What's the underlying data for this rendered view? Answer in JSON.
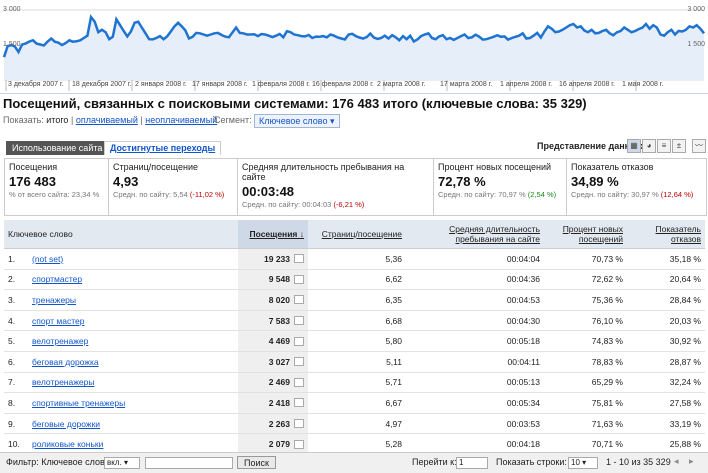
{
  "chart": {
    "y_labels": [
      "3 000",
      "1 500"
    ],
    "x_labels": [
      "3 декабря 2007 г.",
      "18 декабря 2007 г.",
      "2 января 2008 г.",
      "17 января 2008 г.",
      "1 февраля 2008 г.",
      "16 февраля 2008 г.",
      "2 марта 2008 г.",
      "17 марта 2008 г.",
      "1 апреля 2008 г.",
      "16 апреля 2008 г.",
      "1 мая 2008 г."
    ],
    "visits_daily": [
      980,
      1450,
      1500,
      1430,
      1200,
      1520,
      1570,
      1650,
      1700,
      1560,
      1520,
      1480,
      1640,
      1780,
      1640,
      1600,
      1500,
      1580,
      1700,
      1640,
      1660,
      1700,
      1800,
      1900,
      2700,
      2500,
      2050,
      2150,
      2050,
      1750,
      1850,
      2600,
      2350,
      2100,
      1870,
      2080,
      2450,
      2500,
      2250,
      2000,
      1750,
      1740,
      1800,
      1880,
      1750,
      1870,
      2080,
      2300,
      2450,
      2300,
      2130,
      1780,
      1850,
      2020,
      2000,
      1950,
      1900,
      1950,
      2000,
      2020,
      1930,
      1860,
      1830,
      2040,
      2250,
      2020,
      2000,
      1950,
      1950,
      1960,
      1880,
      1970,
      1950,
      1900,
      1840,
      1900,
      1970,
      1830,
      2090,
      2050,
      1950,
      1920,
      1880,
      1870,
      1930,
      1800,
      1860,
      1850,
      1880,
      1830,
      1950,
      1900,
      1820,
      1780,
      1740,
      1950,
      1980,
      1880,
      1820,
      1780,
      1840,
      1990,
      1820,
      1760,
      1800,
      1900,
      1780,
      1920,
      1830,
      1700,
      1880,
      1750,
      1900,
      1650,
      1740,
      1880,
      1950,
      2000,
      1800,
      1750,
      1870,
      1920,
      1750,
      1800,
      1720,
      1800,
      1880,
      1950,
      1800,
      1830,
      1940,
      1860,
      1730,
      1750,
      1800,
      1850,
      1920,
      1850,
      1870,
      1730,
      1800,
      1850,
      1900,
      2000,
      1780,
      1800,
      1900,
      2020,
      1820,
      2080,
      2300,
      2200,
      2050,
      2080,
      2150,
      2250,
      2350,
      2400,
      2250,
      2300,
      2120,
      2050,
      2150,
      2000,
      2020,
      2100,
      2150,
      2000,
      1920,
      2050,
      2100,
      2250,
      2150,
      2050,
      2100,
      2180,
      2240,
      2400,
      2200,
      2350,
      2250,
      1950,
      1900,
      2050,
      2150,
      1950,
      2100,
      2080,
      2150,
      2300,
      2250,
      2350,
      2200,
      2000
    ]
  },
  "title": "Посещений, связанных с поисковыми системами: 176 483 итого (ключевые слова: 35 329)",
  "show": {
    "label": "Показать:",
    "current": "итого",
    "sep": "|",
    "paid": "оплачиваемый",
    "unpaid": "неоплачиваемый"
  },
  "segment": {
    "label": "Сегмент:",
    "value": "Ключевое слово"
  },
  "tabs": {
    "usage": "Использование сайта",
    "goals": "Достигнутые переходы"
  },
  "view": {
    "label": "Представление данных:"
  },
  "metrics": [
    {
      "label": "Посещения",
      "value": "176 483",
      "sub": "% от всего сайта: 23,34 %",
      "delta": ""
    },
    {
      "label": "Страниц/посещение",
      "value": "4,93",
      "sub": "Средн. по сайту: 5,54",
      "delta": "(-11,02 %)"
    },
    {
      "label": "Средняя длительность пребывания на сайте",
      "value": "00:03:48",
      "sub": "Средн. по сайту: 00:04:03",
      "delta": "(-6,21 %)"
    },
    {
      "label": "Процент новых посещений",
      "value": "72,78 %",
      "sub": "Средн. по сайту: 70,97 %",
      "delta": "(2,54 %)"
    },
    {
      "label": "Показатель отказов",
      "value": "34,89 %",
      "sub": "Средн. по сайту: 30,97 %",
      "delta": "(12,64 %)"
    }
  ],
  "table": {
    "headers": [
      "Ключевое слово",
      "Посещения ↓",
      "Страниц/посещение",
      "Средняя длительность пребывания на сайте",
      "Процент новых посещений",
      "Показатель отказов"
    ],
    "rows": [
      [
        "1.",
        "(not set)",
        "19 233",
        "5,36",
        "00:04:04",
        "70,73 %",
        "35,18 %"
      ],
      [
        "2.",
        "спортмастер",
        "9 548",
        "6,62",
        "00:04:36",
        "72,62 %",
        "20,64 %"
      ],
      [
        "3.",
        "тренажеры",
        "8 020",
        "6,35",
        "00:04:53",
        "75,36 %",
        "28,84 %"
      ],
      [
        "4.",
        "спорт мастер",
        "7 583",
        "6,68",
        "00:04:30",
        "76,10 %",
        "20,03 %"
      ],
      [
        "5.",
        "велотренажер",
        "4 469",
        "5,80",
        "00:05:18",
        "74,83 %",
        "30,92 %"
      ],
      [
        "6.",
        "беговая дорожка",
        "3 027",
        "5,11",
        "00:04:11",
        "78,83 %",
        "28,87 %"
      ],
      [
        "7.",
        "велотренажеры",
        "2 469",
        "5,71",
        "00:05:13",
        "65,29 %",
        "32,24 %"
      ],
      [
        "8.",
        "спортивные тренажеры",
        "2 418",
        "6,67",
        "00:05:34",
        "75,81 %",
        "27,58 %"
      ],
      [
        "9.",
        "беговые дорожки",
        "2 263",
        "4,97",
        "00:03:53",
        "71,63 %",
        "33,19 %"
      ],
      [
        "10.",
        "роликовые коньки",
        "2 079",
        "5,28",
        "00:04:18",
        "70,71 %",
        "25,88 %"
      ]
    ]
  },
  "footer": {
    "filter_label": "Фильтр: Ключевое слово",
    "filter_mode": "вкл.",
    "search_btn": "Поиск",
    "goto_label": "Перейти к:",
    "goto_value": "1",
    "rows_label": "Показать строки:",
    "rows_value": "10",
    "range": "1 - 10 из 35 329"
  },
  "colors": {
    "line": "#1f73d1",
    "fill": "#e6eef9"
  }
}
